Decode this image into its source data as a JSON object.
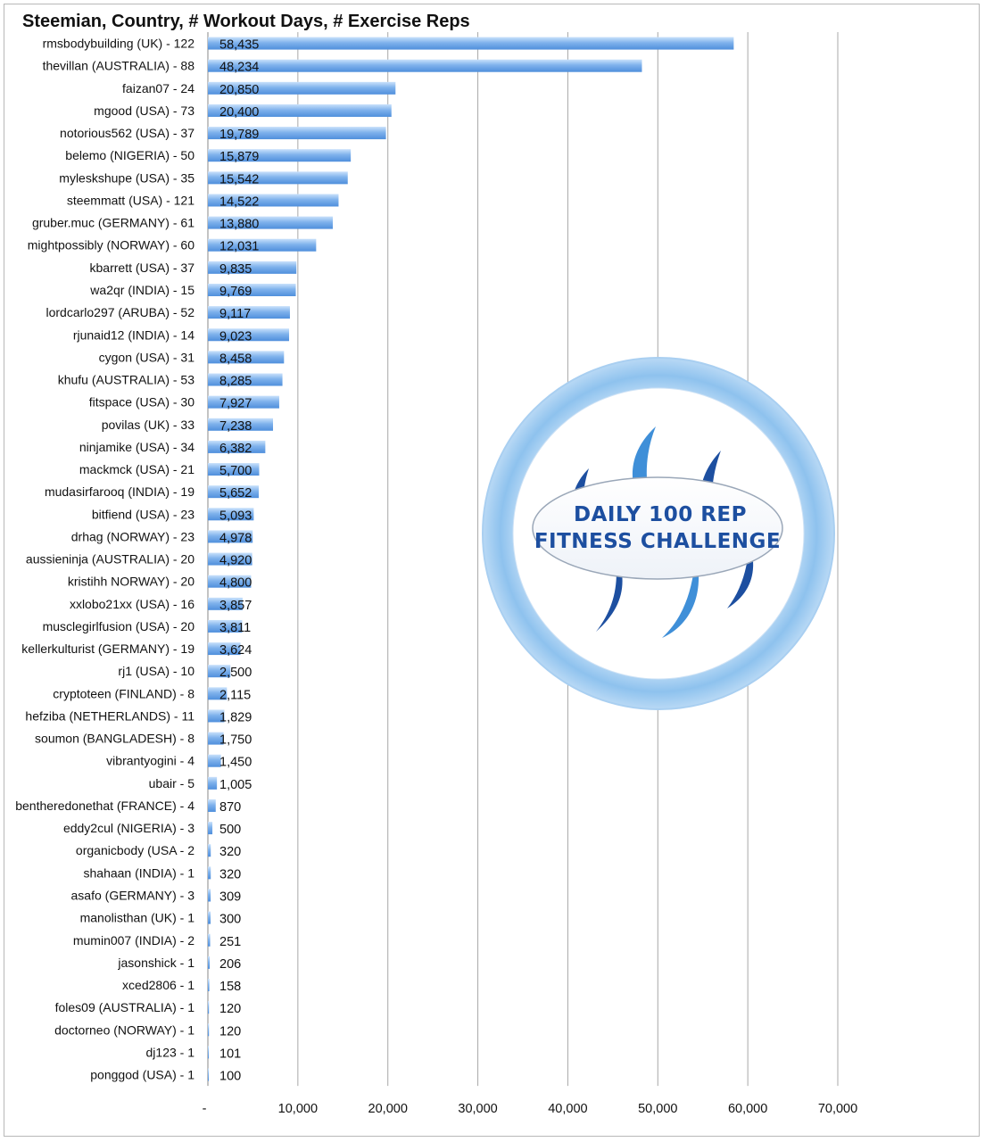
{
  "chart_data": {
    "type": "bar",
    "orientation": "horizontal",
    "title": "Steemian, Country, # Workout Days, # Exercise Reps",
    "xlim": [
      0,
      70000
    ],
    "x_ticks": [
      "-",
      "10,000",
      "20,000",
      "30,000",
      "40,000",
      "50,000",
      "60,000",
      "70,000"
    ],
    "grid": "vertical",
    "bar_color": "#7fb2ec",
    "categories": [
      "rmsbodybuilding (UK) - 122",
      "thevillan (AUSTRALIA) - 88",
      "faizan07 - 24",
      "mgood (USA) - 73",
      "notorious562 (USA) - 37",
      "belemo (NIGERIA) - 50",
      "myleskshupe (USA) - 35",
      "steemmatt (USA) - 121",
      "gruber.muc (GERMANY) - 61",
      "mightpossibly (NORWAY) - 60",
      "kbarrett (USA) - 37",
      "wa2qr (INDIA) - 15",
      "lordcarlo297 (ARUBA) - 52",
      "rjunaid12 (INDIA) - 14",
      "cygon (USA) - 31",
      "khufu (AUSTRALIA) - 53",
      "fitspace (USA) - 30",
      "povilas (UK) - 33",
      "ninjamike (USA) - 34",
      "mackmck (USA) - 21",
      "mudasirfarooq (INDIA) - 19",
      "bitfiend (USA) - 23",
      "drhag (NORWAY) - 23",
      "aussieninja (AUSTRALIA) - 20",
      "kristihh NORWAY) - 20",
      "xxlobo21xx (USA) - 16",
      "musclegirlfusion (USA) - 20",
      "kellerkulturist (GERMANY) - 19",
      "rj1 (USA) - 10",
      "cryptoteen (FINLAND) - 8",
      "hefziba (NETHERLANDS) - 11",
      "soumon (BANGLADESH) - 8",
      "vibrantyogini - 4",
      "ubair - 5",
      "bentheredonethat (FRANCE) - 4",
      "eddy2cul (NIGERIA) - 3",
      "organicbody (USA - 2",
      "shahaan (INDIA) - 1",
      "asafo (GERMANY) - 3",
      "manolisthan (UK) - 1",
      "mumin007 (INDIA) - 2",
      "jasonshick  - 1",
      "xced2806 - 1",
      "foles09 (AUSTRALIA) - 1",
      "doctorneo (NORWAY) - 1",
      "dj123 - 1",
      "ponggod (USA) - 1"
    ],
    "values": [
      58435,
      48234,
      20850,
      20400,
      19789,
      15879,
      15542,
      14522,
      13880,
      12031,
      9835,
      9769,
      9117,
      9023,
      8458,
      8285,
      7927,
      7238,
      6382,
      5700,
      5652,
      5093,
      4978,
      4920,
      4800,
      3857,
      3811,
      3624,
      2500,
      2115,
      1829,
      1750,
      1450,
      1005,
      870,
      500,
      320,
      320,
      309,
      300,
      251,
      206,
      158,
      120,
      120,
      101,
      100
    ],
    "value_labels": [
      "58,435",
      "48,234",
      "20,850",
      "20,400",
      "19,789",
      "15,879",
      "15,542",
      "14,522",
      "13,880",
      "12,031",
      "9,835",
      "9,769",
      "9,117",
      "9,023",
      "8,458",
      "8,285",
      "7,927",
      "7,238",
      "6,382",
      "5,700",
      "5,652",
      "5,093",
      "4,978",
      "4,920",
      "4,800",
      "3,857",
      "3,811",
      "3,624",
      "2,500",
      "2,115",
      "1,829",
      "1,750",
      "1,450",
      "1,005",
      "870",
      "500",
      "320",
      "320",
      "309",
      "300",
      "251",
      "206",
      "158",
      "120",
      "120",
      "101",
      "100"
    ]
  },
  "logo": {
    "line1": "DAILY 100 REP",
    "line2": "FITNESS CHALLENGE",
    "ring_color": "#8ec2ee",
    "accent_dark": "#1d4fa0",
    "accent_light": "#3f8fd8"
  }
}
